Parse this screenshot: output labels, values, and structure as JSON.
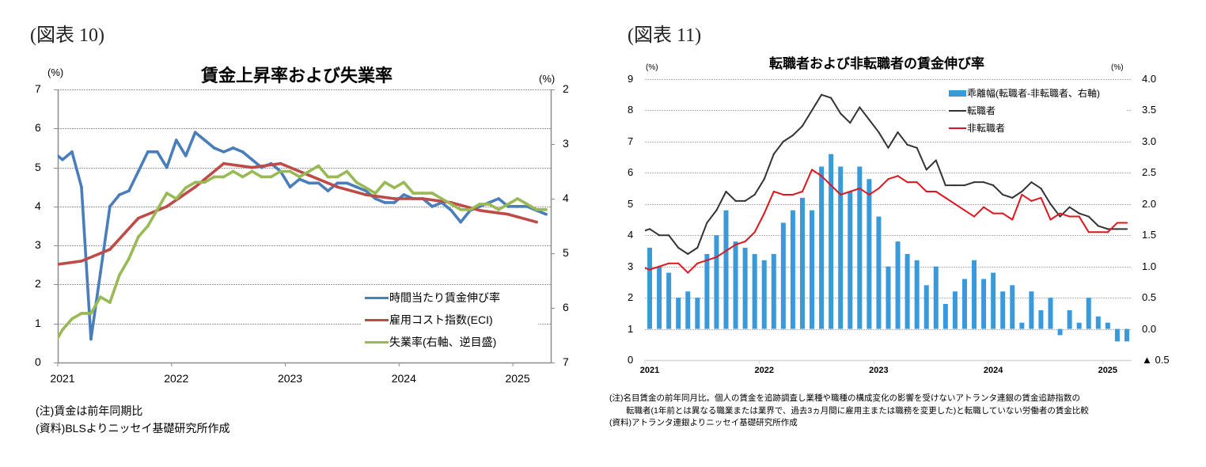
{
  "figures": [
    {
      "label": "(図表 10)",
      "notes": [
        "(注)賃金は前年同期比",
        "(資料)BLSよりニッセイ基礎研究所作成"
      ]
    },
    {
      "label": "(図表 11)",
      "notes": [
        "(注)名目賃金の前年同月比。個人の賃金を追跡調査し業種や職種の構成変化の影響を受けないアトランタ連銀の賃金追跡指数の",
        "　　転職者(1年前とは異なる職業または業界で、過去3ヵ月間に雇用主または職務を変更した)と転職していない労働者の賃金比較",
        "(資料)アトランタ連銀よりニッセイ基礎研究所作成"
      ]
    }
  ],
  "chart_data": [
    {
      "type": "line",
      "title": "賃金上昇率および失業率",
      "y_left_unit": "(%)",
      "y_right_unit": "(%)",
      "xlabel": "",
      "x_range": [
        "2021-01",
        "2025-04"
      ],
      "x": [
        "2020-12",
        "2021-01",
        "2021-02",
        "2021-03",
        "2021-04",
        "2021-05",
        "2021-06",
        "2021-07",
        "2021-08",
        "2021-09",
        "2021-10",
        "2021-11",
        "2021-12",
        "2022-01",
        "2022-02",
        "2022-03",
        "2022-04",
        "2022-05",
        "2022-06",
        "2022-07",
        "2022-08",
        "2022-09",
        "2022-10",
        "2022-11",
        "2022-12",
        "2023-01",
        "2023-02",
        "2023-03",
        "2023-04",
        "2023-05",
        "2023-06",
        "2023-07",
        "2023-08",
        "2023-09",
        "2023-10",
        "2023-11",
        "2023-12",
        "2024-01",
        "2024-02",
        "2024-03",
        "2024-04",
        "2024-05",
        "2024-06",
        "2024-07",
        "2024-08",
        "2024-09",
        "2024-10",
        "2024-11",
        "2024-12",
        "2025-01",
        "2025-02",
        "2025-03",
        "2025-04"
      ],
      "x_ticks": [
        {
          "month": "2021-01",
          "label": "2021"
        },
        {
          "month": "2022-01",
          "label": "2022"
        },
        {
          "month": "2023-01",
          "label": "2023"
        },
        {
          "month": "2024-01",
          "label": "2024"
        },
        {
          "month": "2025-01",
          "label": "2025"
        }
      ],
      "y_left": {
        "range": [
          0,
          7
        ],
        "inverted": false,
        "ticks": [
          {
            "value": 0,
            "label": "0"
          },
          {
            "value": 1,
            "label": "1"
          },
          {
            "value": 2,
            "label": "2"
          },
          {
            "value": 3,
            "label": "3"
          },
          {
            "value": 4,
            "label": "4"
          },
          {
            "value": 5,
            "label": "5"
          },
          {
            "value": 6,
            "label": "6"
          },
          {
            "value": 7,
            "label": "7"
          }
        ]
      },
      "y_right": {
        "range": [
          2,
          7
        ],
        "inverted": true,
        "ticks": [
          {
            "value": 2,
            "label": "2"
          },
          {
            "value": 3,
            "label": "3"
          },
          {
            "value": 4,
            "label": "4"
          },
          {
            "value": 5,
            "label": "5"
          },
          {
            "value": 6,
            "label": "6"
          },
          {
            "value": 7,
            "label": "7"
          }
        ]
      },
      "grid": true,
      "legend_position": "bottom-right",
      "series": [
        {
          "name": "時間当たり賃金伸び率",
          "axis": "left",
          "kind": "line",
          "color": "#4a7ebb",
          "values": [
            5.4,
            5.2,
            5.4,
            4.5,
            0.6,
            2.3,
            4.0,
            4.3,
            4.4,
            4.9,
            5.4,
            5.4,
            5.0,
            5.7,
            5.3,
            5.9,
            5.7,
            5.5,
            5.4,
            5.5,
            5.4,
            5.2,
            5.0,
            5.1,
            4.9,
            4.5,
            4.7,
            4.6,
            4.6,
            4.4,
            4.6,
            4.6,
            4.5,
            4.4,
            4.2,
            4.1,
            4.1,
            4.3,
            4.2,
            4.2,
            4.0,
            4.1,
            3.9,
            3.6,
            3.9,
            4.0,
            4.1,
            4.2,
            4.0,
            4.0,
            4.0,
            3.9,
            3.8
          ]
        },
        {
          "name": "雇用コスト指数(ECI)",
          "axis": "left",
          "kind": "line",
          "color": "#be4b48",
          "values": [
            2.5,
            null,
            null,
            2.6,
            null,
            null,
            2.9,
            null,
            null,
            3.7,
            null,
            null,
            4.0,
            null,
            null,
            4.5,
            null,
            null,
            5.1,
            null,
            null,
            5.0,
            null,
            null,
            5.1,
            null,
            null,
            4.8,
            null,
            null,
            4.5,
            null,
            null,
            4.3,
            null,
            null,
            4.2,
            null,
            null,
            4.2,
            null,
            null,
            4.1,
            null,
            null,
            3.9,
            null,
            null,
            3.8,
            null,
            null,
            3.6,
            null
          ]
        },
        {
          "name": "失業率(右軸、逆目盛)",
          "axis": "right",
          "kind": "line",
          "color": "#98b954",
          "values": [
            6.7,
            6.4,
            6.2,
            6.1,
            6.1,
            5.8,
            5.9,
            5.4,
            5.1,
            4.7,
            4.5,
            4.2,
            3.9,
            4.0,
            3.8,
            3.7,
            3.7,
            3.6,
            3.6,
            3.5,
            3.6,
            3.5,
            3.6,
            3.6,
            3.5,
            3.5,
            3.6,
            3.5,
            3.4,
            3.6,
            3.6,
            3.5,
            3.7,
            3.8,
            3.9,
            3.7,
            3.8,
            3.7,
            3.9,
            3.9,
            3.9,
            4.0,
            4.1,
            4.2,
            4.2,
            4.1,
            4.1,
            4.2,
            4.1,
            4.0,
            4.1,
            4.2,
            4.2
          ]
        }
      ]
    },
    {
      "type": "bar",
      "title": "転職者および非転職者の賃金伸び率",
      "y_left_unit": "(%)",
      "y_right_unit": "(%)",
      "xlabel": "",
      "x_range": [
        "2021-01",
        "2025-03"
      ],
      "x": [
        "2020-12",
        "2021-01",
        "2021-02",
        "2021-03",
        "2021-04",
        "2021-05",
        "2021-06",
        "2021-07",
        "2021-08",
        "2021-09",
        "2021-10",
        "2021-11",
        "2021-12",
        "2022-01",
        "2022-02",
        "2022-03",
        "2022-04",
        "2022-05",
        "2022-06",
        "2022-07",
        "2022-08",
        "2022-09",
        "2022-10",
        "2022-11",
        "2022-12",
        "2023-01",
        "2023-02",
        "2023-03",
        "2023-04",
        "2023-05",
        "2023-06",
        "2023-07",
        "2023-08",
        "2023-09",
        "2023-10",
        "2023-11",
        "2023-12",
        "2024-01",
        "2024-02",
        "2024-03",
        "2024-04",
        "2024-05",
        "2024-06",
        "2024-07",
        "2024-08",
        "2024-09",
        "2024-10",
        "2024-11",
        "2024-12",
        "2025-01",
        "2025-02",
        "2025-03"
      ],
      "x_ticks": [
        {
          "month": "2021-01",
          "label": "2021"
        },
        {
          "month": "2022-01",
          "label": "2022"
        },
        {
          "month": "2023-01",
          "label": "2023"
        },
        {
          "month": "2024-01",
          "label": "2024"
        },
        {
          "month": "2025-01",
          "label": "2025"
        }
      ],
      "y_left": {
        "range": [
          0,
          9
        ],
        "inverted": false,
        "ticks": [
          {
            "value": 0,
            "label": "0"
          },
          {
            "value": 1,
            "label": "1"
          },
          {
            "value": 2,
            "label": "2"
          },
          {
            "value": 3,
            "label": "3"
          },
          {
            "value": 4,
            "label": "4"
          },
          {
            "value": 5,
            "label": "5"
          },
          {
            "value": 6,
            "label": "6"
          },
          {
            "value": 7,
            "label": "7"
          },
          {
            "value": 8,
            "label": "8"
          },
          {
            "value": 9,
            "label": "9"
          }
        ]
      },
      "y_right": {
        "range": [
          -0.5,
          4.0
        ],
        "inverted": false,
        "ticks": [
          {
            "value": -0.5,
            "label": "▲ 0.5"
          },
          {
            "value": 0.0,
            "label": "0.0"
          },
          {
            "value": 0.5,
            "label": "0.5"
          },
          {
            "value": 1.0,
            "label": "1.0"
          },
          {
            "value": 1.5,
            "label": "1.5"
          },
          {
            "value": 2.0,
            "label": "2.0"
          },
          {
            "value": 2.5,
            "label": "2.5"
          },
          {
            "value": 3.0,
            "label": "3.0"
          },
          {
            "value": 3.5,
            "label": "3.5"
          },
          {
            "value": 4.0,
            "label": "4.0"
          }
        ]
      },
      "grid": true,
      "legend_position": "top-right",
      "series": [
        {
          "name": "乖離幅(転職者-非転職者、右軸)",
          "axis": "right",
          "kind": "bar",
          "color": "#3a9ad9",
          "values": [
            null,
            1.3,
            1.0,
            0.9,
            0.5,
            0.6,
            0.5,
            1.2,
            1.5,
            1.9,
            1.4,
            1.3,
            1.2,
            1.1,
            1.2,
            1.7,
            1.9,
            2.1,
            1.9,
            2.6,
            2.8,
            2.6,
            2.2,
            2.6,
            2.4,
            1.8,
            1.0,
            1.4,
            1.2,
            1.1,
            0.7,
            1.0,
            0.4,
            0.6,
            0.8,
            1.1,
            0.8,
            0.9,
            0.6,
            0.7,
            0.1,
            0.6,
            0.3,
            0.5,
            -0.1,
            0.3,
            0.1,
            0.5,
            0.2,
            0.1,
            -0.2,
            -0.2
          ]
        },
        {
          "name": "転職者",
          "axis": "left",
          "kind": "line",
          "color": "#333333",
          "values": [
            4.1,
            4.2,
            4.0,
            4.0,
            3.6,
            3.4,
            3.6,
            4.4,
            4.8,
            5.4,
            5.1,
            5.1,
            5.3,
            5.8,
            6.6,
            7.0,
            7.2,
            7.5,
            8.0,
            8.5,
            8.4,
            7.9,
            7.6,
            8.1,
            7.7,
            7.3,
            6.8,
            7.3,
            6.9,
            6.8,
            6.1,
            6.4,
            5.6,
            5.6,
            5.6,
            5.7,
            5.7,
            5.6,
            5.3,
            5.2,
            5.4,
            5.7,
            5.5,
            5.0,
            4.6,
            4.9,
            4.7,
            4.6,
            4.3,
            4.2,
            4.2,
            4.2
          ]
        },
        {
          "name": "非転職者",
          "axis": "left",
          "kind": "line",
          "color": "#e0141e",
          "values": [
            3.0,
            2.9,
            3.0,
            3.1,
            3.1,
            2.8,
            3.1,
            3.2,
            3.3,
            3.5,
            3.7,
            3.8,
            4.1,
            4.7,
            5.4,
            5.3,
            5.3,
            5.4,
            6.1,
            5.9,
            5.6,
            5.3,
            5.4,
            5.5,
            5.3,
            5.5,
            5.8,
            5.9,
            5.7,
            5.7,
            5.4,
            5.4,
            5.2,
            5.0,
            4.8,
            4.6,
            4.9,
            4.7,
            4.7,
            4.5,
            5.3,
            5.1,
            5.2,
            4.5,
            4.7,
            4.6,
            4.6,
            4.1,
            4.1,
            4.1,
            4.4,
            4.4
          ]
        }
      ]
    }
  ]
}
